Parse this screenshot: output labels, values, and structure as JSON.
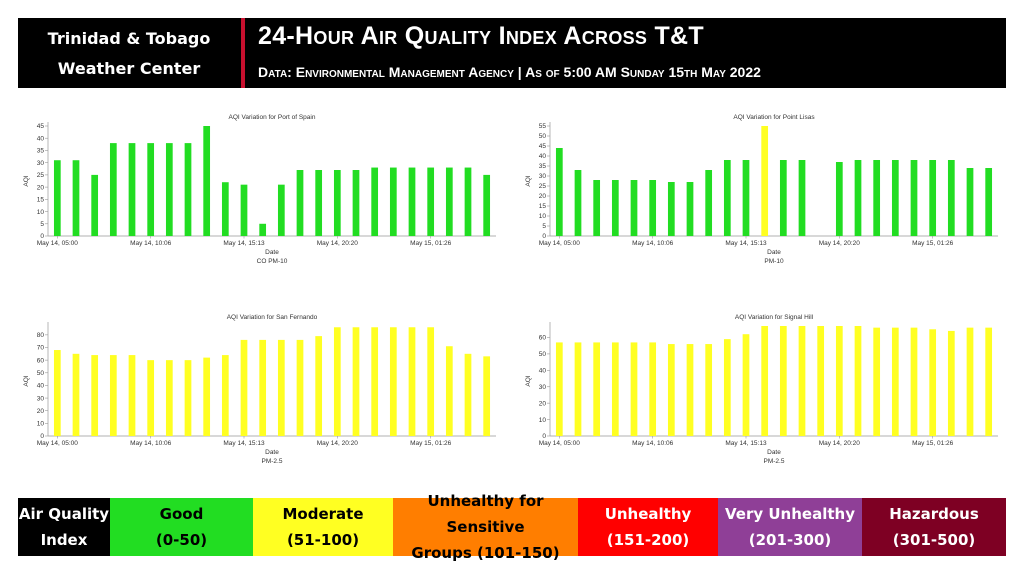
{
  "header": {
    "brand_line1": "Trinidad & Tobago",
    "brand_line2": "Weather Center",
    "title": "24-Hour Air Quality Index Across T&T",
    "subtitle": "Data: Environmental Management Agency | As of 5:00 AM Sunday 15th May 2022"
  },
  "colors": {
    "good": "#22dd22",
    "moderate": "#ffff22"
  },
  "chart_data": [
    {
      "type": "bar",
      "title": "AQI Variation for Port of Spain",
      "xlabel": "Date",
      "ylabel": "AQI",
      "ylim": [
        0,
        45
      ],
      "yticks": [
        0,
        5,
        10,
        15,
        20,
        25,
        30,
        35,
        40,
        45
      ],
      "xtick_labels": [
        "May 14, 05:00",
        "May 14, 10:06",
        "May 14, 15:13",
        "May 14, 20:20",
        "May 15, 01:26"
      ],
      "legend": [
        "CO",
        "PM-10"
      ],
      "values": [
        31,
        31,
        25,
        38,
        38,
        38,
        38,
        38,
        45,
        22,
        21,
        5,
        21,
        27,
        27,
        27,
        27,
        28,
        28,
        28,
        28,
        28,
        28,
        25
      ],
      "bar_colors": [
        "good",
        "good",
        "good",
        "good",
        "good",
        "good",
        "good",
        "good",
        "good",
        "good",
        "good",
        "good",
        "good",
        "good",
        "good",
        "good",
        "good",
        "good",
        "good",
        "good",
        "good",
        "good",
        "good",
        "good"
      ]
    },
    {
      "type": "bar",
      "title": "AQI Variation for Point Lisas",
      "xlabel": "Date",
      "ylabel": "AQI",
      "ylim": [
        0,
        55
      ],
      "yticks": [
        0,
        5,
        10,
        15,
        20,
        25,
        30,
        35,
        40,
        45,
        50,
        55
      ],
      "xtick_labels": [
        "May 14, 05:00",
        "May 14, 10:06",
        "May 14, 15:13",
        "May 14, 20:20",
        "May 15, 01:26"
      ],
      "legend": [
        "PM-10"
      ],
      "values": [
        44,
        33,
        28,
        28,
        28,
        28,
        27,
        27,
        33,
        38,
        38,
        55,
        38,
        38,
        null,
        37,
        38,
        38,
        38,
        38,
        38,
        38,
        34,
        34
      ],
      "bar_colors": [
        "good",
        "good",
        "good",
        "good",
        "good",
        "good",
        "good",
        "good",
        "good",
        "good",
        "good",
        "moderate",
        "good",
        "good",
        "good",
        "good",
        "good",
        "good",
        "good",
        "good",
        "good",
        "good",
        "good",
        "good"
      ]
    },
    {
      "type": "bar",
      "title": "AQI Variation for San Fernando",
      "xlabel": "Date",
      "ylabel": "AQI",
      "ylim": [
        0,
        87
      ],
      "yticks": [
        0,
        10,
        20,
        30,
        40,
        50,
        60,
        70,
        80
      ],
      "xtick_labels": [
        "May 14, 05:00",
        "May 14, 10:06",
        "May 14, 15:13",
        "May 14, 20:20",
        "May 15, 01:26"
      ],
      "legend": [
        "PM-2.5"
      ],
      "values": [
        68,
        65,
        64,
        64,
        64,
        60,
        60,
        60,
        62,
        64,
        76,
        76,
        76,
        76,
        79,
        86,
        86,
        86,
        86,
        86,
        86,
        71,
        65,
        63
      ],
      "bar_colors": [
        "moderate",
        "moderate",
        "moderate",
        "moderate",
        "moderate",
        "moderate",
        "moderate",
        "moderate",
        "moderate",
        "moderate",
        "moderate",
        "moderate",
        "moderate",
        "moderate",
        "moderate",
        "moderate",
        "moderate",
        "moderate",
        "moderate",
        "moderate",
        "moderate",
        "moderate",
        "moderate",
        "moderate"
      ]
    },
    {
      "type": "bar",
      "title": "AQI Variation for Signal Hill",
      "xlabel": "Date",
      "ylabel": "AQI",
      "ylim": [
        0,
        67
      ],
      "yticks": [
        0,
        10,
        20,
        30,
        40,
        50,
        60
      ],
      "xtick_labels": [
        "May 14, 05:00",
        "May 14, 10:06",
        "May 14, 15:13",
        "May 14, 20:20",
        "May 15, 01:26"
      ],
      "legend": [
        "PM-2.5"
      ],
      "values": [
        57,
        57,
        57,
        57,
        57,
        57,
        56,
        56,
        56,
        59,
        62,
        67,
        67,
        67,
        67,
        67,
        67,
        66,
        66,
        66,
        65,
        64,
        66,
        66
      ],
      "bar_colors": [
        "moderate",
        "moderate",
        "moderate",
        "moderate",
        "moderate",
        "moderate",
        "moderate",
        "moderate",
        "moderate",
        "moderate",
        "moderate",
        "moderate",
        "moderate",
        "moderate",
        "moderate",
        "moderate",
        "moderate",
        "moderate",
        "moderate",
        "moderate",
        "moderate",
        "moderate",
        "moderate",
        "moderate"
      ]
    }
  ],
  "aqi_legend": {
    "label_line1": "Air Quality",
    "label_line2": "Index",
    "categories": [
      {
        "name": "Good",
        "range": "(0-50)",
        "bg": "#22dd22",
        "fg": "#000000"
      },
      {
        "name": "Moderate",
        "range": "(51-100)",
        "bg": "#ffff22",
        "fg": "#000000"
      },
      {
        "name": "Unhealthy for Sensitive",
        "range": "Groups (101-150)",
        "bg": "#ff7e00",
        "fg": "#000000"
      },
      {
        "name": "Unhealthy",
        "range": "(151-200)",
        "bg": "#ff0000",
        "fg": "#ffffff"
      },
      {
        "name": "Very Unhealthy",
        "range": "(201-300)",
        "bg": "#8f3f97",
        "fg": "#ffffff"
      },
      {
        "name": "Hazardous",
        "range": "(301-500)",
        "bg": "#7e0023",
        "fg": "#ffffff"
      }
    ]
  }
}
